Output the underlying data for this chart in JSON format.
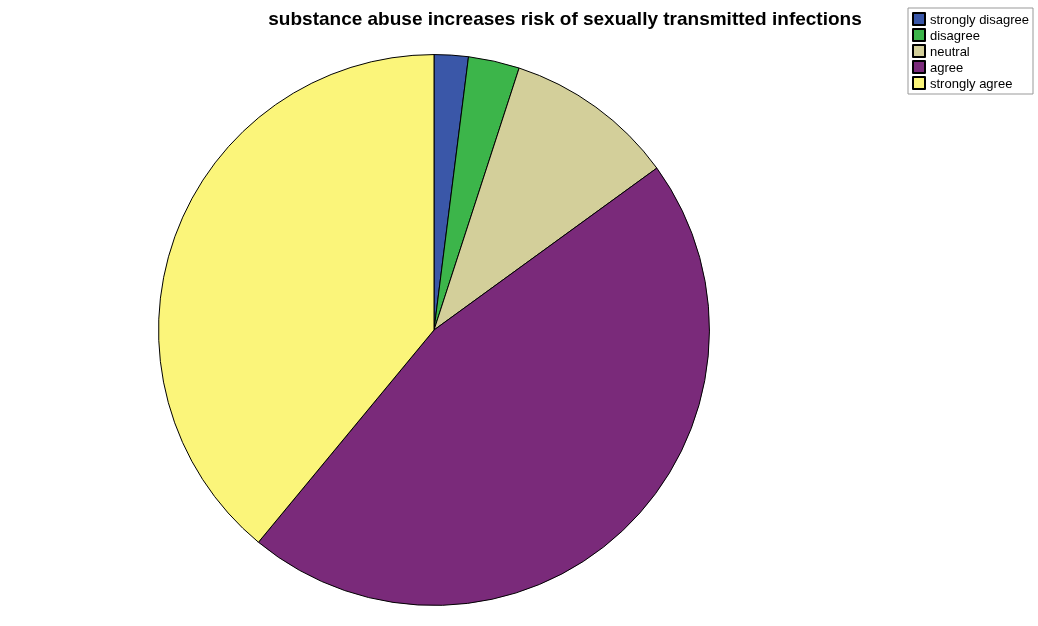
{
  "chart_data": {
    "type": "pie",
    "title": "substance abuse increases risk of sexually transmitted infections",
    "categories": [
      "strongly disagree",
      "disagree",
      "neutral",
      "agree",
      "strongly agree"
    ],
    "values": [
      2.0,
      3.0,
      10.0,
      46.0,
      39.0
    ],
    "colors": [
      "#3a57a8",
      "#3cb54a",
      "#d3cf9a",
      "#7a2a7a",
      "#fbf57a"
    ],
    "legend": "top right"
  }
}
